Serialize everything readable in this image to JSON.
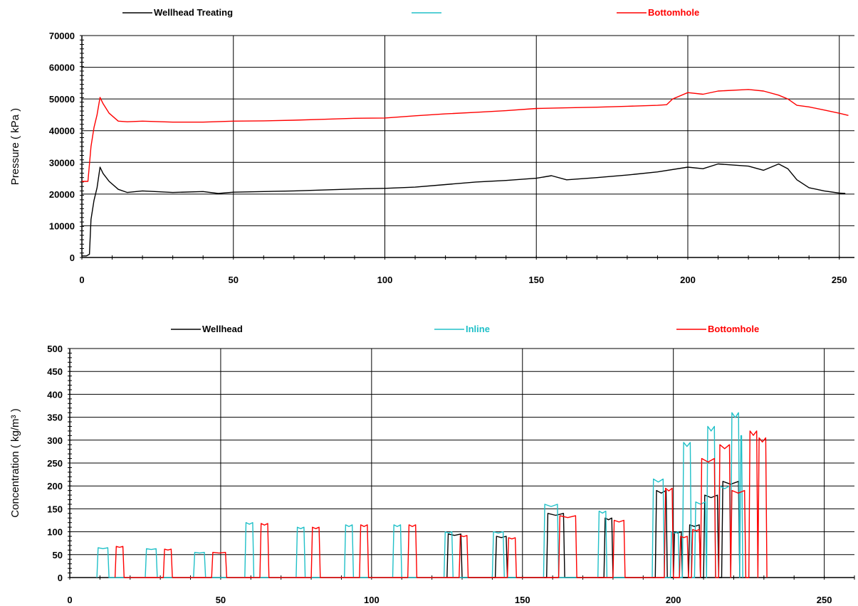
{
  "chart_data": [
    {
      "type": "line",
      "title": "",
      "xlabel": "",
      "ylabel": "Pressure ( kPa )",
      "xlim": [
        0,
        255
      ],
      "ylim": [
        0,
        70000
      ],
      "xticks": [
        0,
        50,
        100,
        150,
        200,
        250
      ],
      "yticks": [
        0,
        10000,
        20000,
        30000,
        40000,
        50000,
        60000,
        70000
      ],
      "tick_labels_x": [
        "0",
        "50",
        "100",
        "150",
        "200",
        "250"
      ],
      "tick_labels_y": [
        "0",
        "10000",
        "20000",
        "30000",
        "40000",
        "50000",
        "60000",
        "70000"
      ],
      "grid": true,
      "legend": "top",
      "series": [
        {
          "name": "Wellhead Treating",
          "color": "#000000",
          "x": [
            0,
            1.5,
            2.5,
            3,
            4,
            5,
            6,
            7,
            9,
            12,
            15,
            20,
            30,
            40,
            45,
            50,
            60,
            70,
            80,
            90,
            100,
            110,
            120,
            130,
            140,
            150,
            155,
            160,
            170,
            180,
            190,
            200,
            205,
            210,
            220,
            225,
            230,
            233,
            236,
            240,
            245,
            250,
            252
          ],
          "y": [
            500,
            500,
            1000,
            12000,
            18000,
            22000,
            28500,
            26500,
            24000,
            21500,
            20500,
            21000,
            20500,
            20800,
            20200,
            20600,
            20800,
            21000,
            21300,
            21600,
            21800,
            22200,
            23000,
            23800,
            24300,
            25000,
            25800,
            24500,
            25200,
            26000,
            27000,
            28500,
            28000,
            29500,
            28800,
            27500,
            29500,
            28000,
            24500,
            22000,
            21000,
            20300,
            20200
          ]
        },
        {
          "name": "Bottomhole",
          "color": "#ff0000",
          "x": [
            0,
            2,
            3,
            4,
            5,
            6,
            7,
            9,
            12,
            15,
            20,
            30,
            40,
            50,
            60,
            70,
            80,
            90,
            100,
            110,
            120,
            130,
            140,
            150,
            160,
            170,
            180,
            190,
            193,
            195,
            200,
            205,
            210,
            220,
            225,
            230,
            233,
            236,
            240,
            245,
            250,
            253
          ],
          "y": [
            24000,
            24000,
            35000,
            41000,
            45000,
            50500,
            48500,
            45500,
            43000,
            42800,
            43000,
            42700,
            42700,
            43000,
            43100,
            43300,
            43600,
            43900,
            44000,
            44700,
            45300,
            45800,
            46300,
            47000,
            47200,
            47400,
            47700,
            48000,
            48200,
            50000,
            52000,
            51500,
            52500,
            53000,
            52500,
            51200,
            50000,
            48000,
            47500,
            46500,
            45500,
            44800
          ]
        }
      ],
      "legend_entries": [
        {
          "name": "Wellhead Treating",
          "color": "#000000"
        },
        {
          "name": "",
          "color": "#20c0c8"
        },
        {
          "name": "Bottomhole",
          "color": "#ff0000"
        }
      ]
    },
    {
      "type": "line",
      "title": "",
      "xlabel": "",
      "ylabel": "Concentration ( kg/m³ )",
      "xlim": [
        0,
        260
      ],
      "ylim": [
        0,
        500
      ],
      "xticks": [
        0,
        50,
        100,
        150,
        200,
        250
      ],
      "yticks": [
        0,
        50,
        100,
        150,
        200,
        250,
        300,
        350,
        400,
        450,
        500
      ],
      "tick_labels_x": [
        "0",
        "50",
        "100",
        "150",
        "200",
        "250"
      ],
      "tick_labels_y": [
        "0",
        "50",
        "100",
        "150",
        "200",
        "250",
        "300",
        "350",
        "400",
        "450",
        "500"
      ],
      "grid": true,
      "legend": "top",
      "series": [
        {
          "name": "Wellhead",
          "color": "#000000",
          "pulses": [
            [
              125,
              130,
              95
            ],
            [
              141,
              145,
              90
            ],
            [
              158,
              164,
              140
            ],
            [
              177,
              180,
              130
            ],
            [
              194,
              198,
              190
            ],
            [
              200,
              203,
              100
            ],
            [
              205,
              209,
              115
            ],
            [
              210,
              215,
              180
            ],
            [
              216,
              222,
              210
            ]
          ]
        },
        {
          "name": "Inline",
          "color": "#20c0c8",
          "pulses": [
            [
              9,
              13,
              65
            ],
            [
              25,
              29,
              63
            ],
            [
              41,
              45,
              55
            ],
            [
              58,
              61,
              120
            ],
            [
              75,
              78,
              110
            ],
            [
              91,
              94,
              115
            ],
            [
              107,
              110,
              115
            ],
            [
              124,
              127,
              100
            ],
            [
              140,
              144,
              100
            ],
            [
              157,
              162,
              160
            ],
            [
              175,
              178,
              145
            ],
            [
              193,
              197,
              215
            ],
            [
              199,
              202,
              100
            ],
            [
              203,
              206,
              295
            ],
            [
              207,
              211,
              165
            ],
            [
              211,
              214,
              330
            ],
            [
              215,
              219,
              200
            ],
            [
              219,
              222,
              360
            ],
            [
              222,
              223,
              310
            ]
          ]
        },
        {
          "name": "Bottomhole",
          "color": "#ff0000",
          "pulses": [
            [
              15,
              18,
              68
            ],
            [
              31,
              34,
              62
            ],
            [
              47,
              52,
              55
            ],
            [
              63,
              66,
              118
            ],
            [
              80,
              83,
              110
            ],
            [
              96,
              99,
              115
            ],
            [
              112,
              115,
              115
            ],
            [
              129,
              132,
              92
            ],
            [
              145,
              148,
              87
            ],
            [
              162,
              168,
              135
            ],
            [
              180,
              184,
              125
            ],
            [
              197,
              200,
              195
            ],
            [
              202,
              205,
              90
            ],
            [
              206,
              209,
              105
            ],
            [
              209,
              214,
              260
            ],
            [
              215,
              219,
              290
            ],
            [
              219,
              224,
              190
            ],
            [
              225,
              228,
              320
            ],
            [
              228,
              231,
              305
            ]
          ]
        }
      ],
      "legend_entries": [
        {
          "name": "Wellhead",
          "color": "#000000"
        },
        {
          "name": "Inline",
          "color": "#20c0c8"
        },
        {
          "name": "Bottomhole",
          "color": "#ff0000"
        }
      ]
    }
  ]
}
